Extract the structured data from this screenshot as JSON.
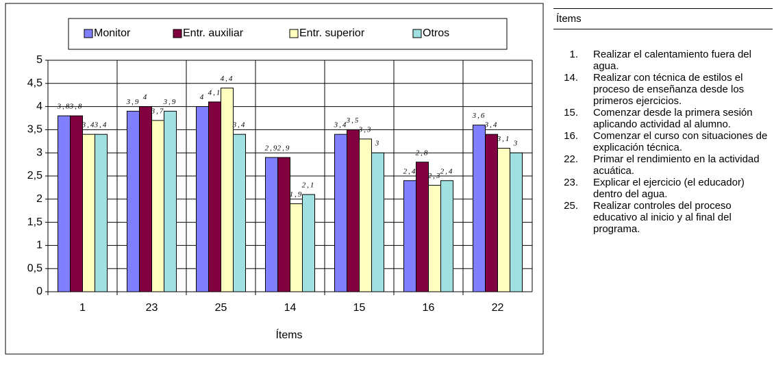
{
  "chart_data": {
    "type": "bar",
    "x_label": "Ítems",
    "categories": [
      "1",
      "23",
      "25",
      "14",
      "15",
      "16",
      "22"
    ],
    "series": [
      {
        "name": "Monitor",
        "color": "#8080ff",
        "values": [
          3.8,
          3.9,
          4,
          2.9,
          3.4,
          2.4,
          3.6
        ],
        "value_labels": [
          "3,8",
          "3,9",
          "4",
          "2,9",
          "3,4",
          "2,4",
          "3,6"
        ]
      },
      {
        "name": "Entr. auxiliar",
        "color": "#800040",
        "values": [
          3.8,
          4,
          4.1,
          2.9,
          3.5,
          2.8,
          3.4
        ],
        "value_labels": [
          "3,8",
          "4",
          "4,1",
          "2,9",
          "3,5",
          "2,8",
          "3,4"
        ]
      },
      {
        "name": "Entr. superior",
        "color": "#ffffc0",
        "values": [
          3.4,
          3.7,
          4.4,
          1.9,
          3.3,
          2.3,
          3.1
        ],
        "value_labels": [
          "3,4",
          "3,7",
          "4,4",
          "1,9",
          "3,3",
          "2,3",
          "3,1"
        ]
      },
      {
        "name": "Otros",
        "color": "#a0e0e0",
        "values": [
          3.4,
          3.9,
          3.4,
          2.1,
          3,
          2.4,
          3
        ],
        "value_labels": [
          "3,4",
          "3,9",
          "3,4",
          "2,1",
          "3",
          "2,4",
          "3"
        ]
      }
    ],
    "ylim": [
      0,
      5
    ],
    "yticks": [
      0,
      {
        "value": 0.5,
        "label": "0,5"
      },
      1,
      {
        "value": 1.5,
        "label": "1,5"
      },
      2,
      {
        "value": 2.5,
        "label": "2,5"
      },
      3,
      {
        "value": 3.5,
        "label": "3,5"
      },
      4,
      {
        "value": 4.5,
        "label": "4,5"
      },
      5
    ],
    "grid": true,
    "legend": "top"
  },
  "items_panel": {
    "title": "Ítems",
    "items": [
      {
        "number": "1.",
        "text": "Realizar el calentamiento fuera del agua."
      },
      {
        "number": "14.",
        "text": "Realizar con técnica de estilos el proceso de enseñanza desde los primeros ejercicios."
      },
      {
        "number": "15.",
        "text": "Comenzar desde la primera sesión aplicando actividad al alumno."
      },
      {
        "number": "16.",
        "text": "Comenzar el curso con situaciones de explicación técnica."
      },
      {
        "number": "22.",
        "text": "Primar el rendimiento en la actividad acuática."
      },
      {
        "number": "23.",
        "text": "Explicar el ejercicio (el educador) dentro del agua."
      },
      {
        "number": "25.",
        "text": "Realizar controles del proceso educativo al inicio y al final del programa."
      }
    ]
  }
}
